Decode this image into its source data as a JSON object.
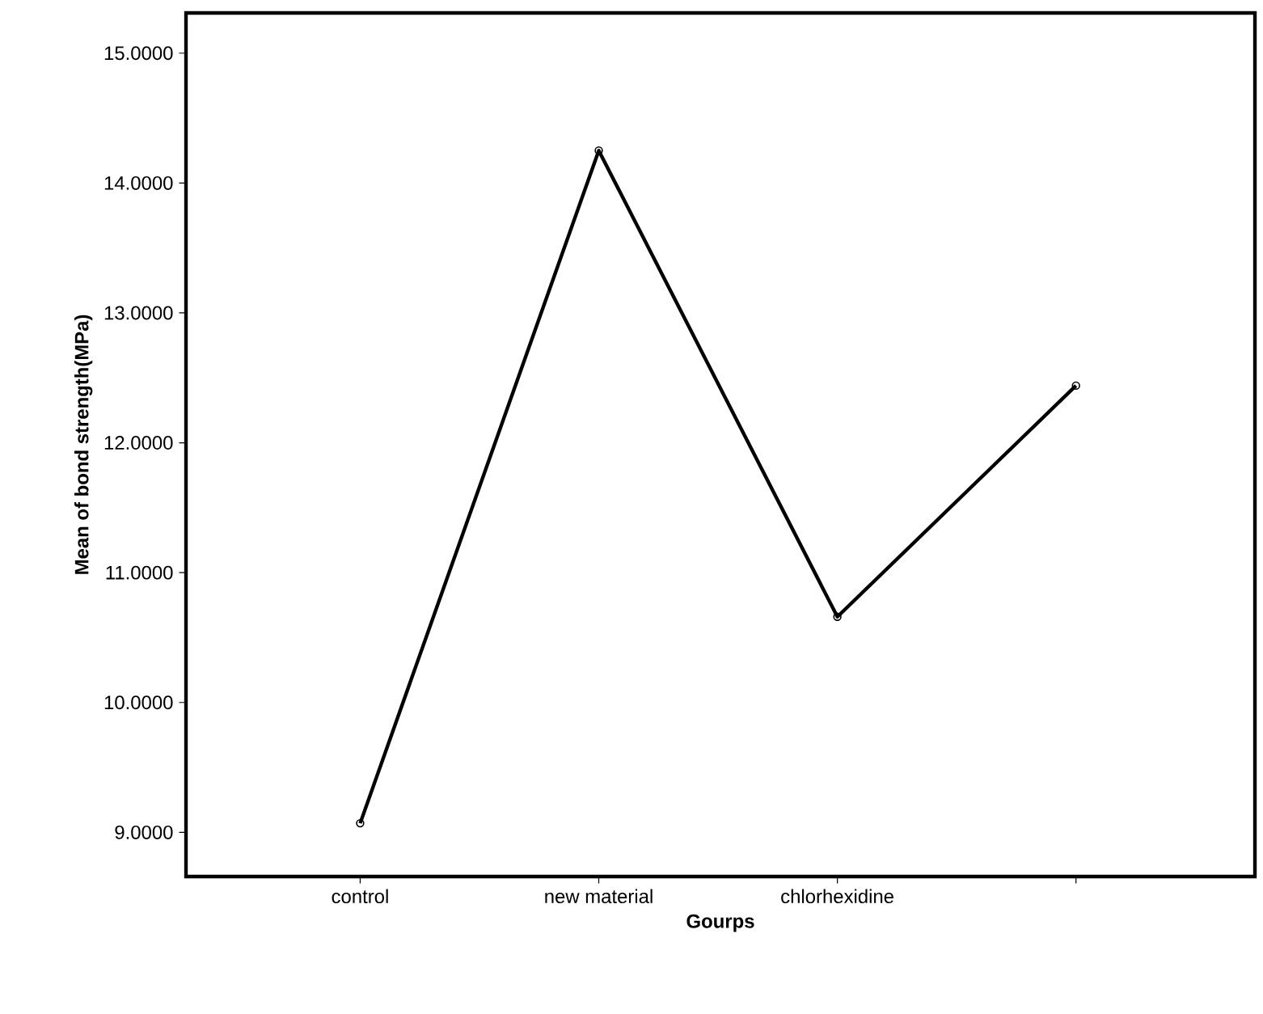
{
  "chart_data": {
    "type": "line",
    "xlabel": "Gourps",
    "ylabel": "Mean of bond strength(MPa)",
    "categories": [
      "control",
      "new material",
      "chlorhexidine",
      null
    ],
    "values": [
      9.07,
      14.25,
      10.66,
      12.44
    ],
    "color": "#000000",
    "marker": "circle",
    "line_style": "solid",
    "grid": false,
    "ylim": [
      8.66,
      15.31
    ],
    "yticks": [
      {
        "value": 9,
        "label": "9.0000"
      },
      {
        "value": 10,
        "label": "10.0000"
      },
      {
        "value": 11,
        "label": "11.0000"
      },
      {
        "value": 12,
        "label": "12.0000"
      },
      {
        "value": 13,
        "label": "13.0000"
      },
      {
        "value": 14,
        "label": "14.0000"
      },
      {
        "value": 15,
        "label": "15.0000"
      }
    ]
  }
}
